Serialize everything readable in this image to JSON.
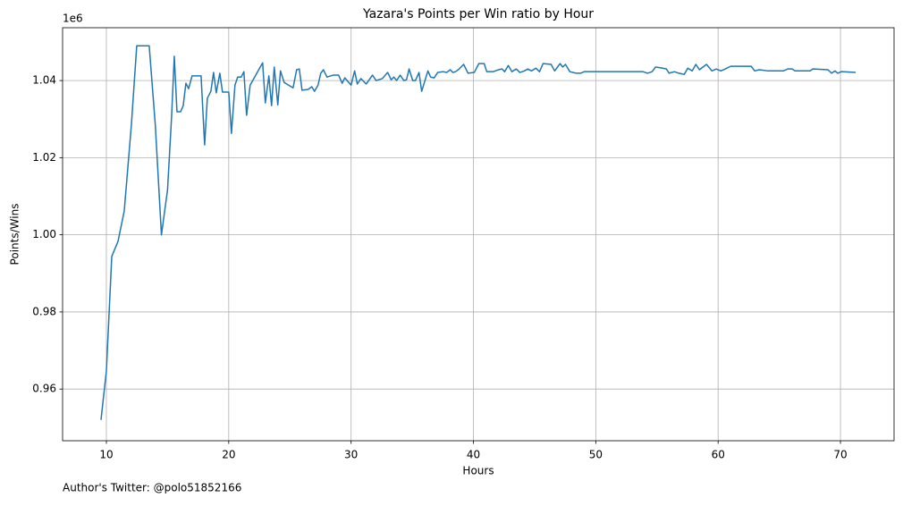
{
  "chart_data": {
    "type": "line",
    "title": "Yazara's Points per Win ratio by Hour",
    "xlabel": "Hours",
    "ylabel": "Points/Wins",
    "y_offset_label": "1e6",
    "footnote": "Author's Twitter: @polo51852166",
    "grid": true,
    "xlim": [
      6.42,
      74.38
    ],
    "ylim": [
      0.9466,
      1.0537
    ],
    "xticks": [
      10,
      20,
      30,
      40,
      50,
      60,
      70
    ],
    "yticks": [
      0.96,
      0.98,
      {
        "value": 1,
        "label": "1.00"
      },
      1.02,
      1.04
    ],
    "series": [
      {
        "color": "#1f77b4",
        "x": [
          9.56,
          10.0,
          10.44,
          10.95,
          11.46,
          12.04,
          12.48,
          13.5,
          14.0,
          14.5,
          15.0,
          15.33,
          15.55,
          15.77,
          16.06,
          16.28,
          16.5,
          16.72,
          17.0,
          17.74,
          18.03,
          18.25,
          18.54,
          18.76,
          18.98,
          19.27,
          19.49,
          20.0,
          20.22,
          20.51,
          20.73,
          21.02,
          21.24,
          21.46,
          21.75,
          22.77,
          22.99,
          23.28,
          23.5,
          23.72,
          24.01,
          24.23,
          24.53,
          25.26,
          25.55,
          25.77,
          25.99,
          26.5,
          26.79,
          27.01,
          27.3,
          27.52,
          27.74,
          28.03,
          28.54,
          28.98,
          29.27,
          29.49,
          30.0,
          30.29,
          30.51,
          30.8,
          31.24,
          31.75,
          32.04,
          32.55,
          32.99,
          33.28,
          33.5,
          33.72,
          34.01,
          34.31,
          34.53,
          34.74,
          35.04,
          35.26,
          35.55,
          35.77,
          36.28,
          36.5,
          36.79,
          37.08,
          37.52,
          37.81,
          38.1,
          38.32,
          38.54,
          38.83,
          39.2,
          39.56,
          40.07,
          40.44,
          40.88,
          41.09,
          41.61,
          42.04,
          42.34,
          42.55,
          42.85,
          43.14,
          43.5,
          43.8,
          44.16,
          44.45,
          44.74,
          45.11,
          45.4,
          45.69,
          46.35,
          46.64,
          47.08,
          47.3,
          47.52,
          47.88,
          48.39,
          48.76,
          49.05,
          53.87,
          54.23,
          54.6,
          54.89,
          55.47,
          55.77,
          55.99,
          56.42,
          56.79,
          57.23,
          57.52,
          57.88,
          58.18,
          58.47,
          59.05,
          59.49,
          59.85,
          60.22,
          60.58,
          61.02,
          62.7,
          62.99,
          63.36,
          64.09,
          65.33,
          65.69,
          66.06,
          66.28,
          67.52,
          67.74,
          68.98,
          69.27,
          69.56,
          69.78,
          70.07,
          71.24
        ],
        "values": [
          0.952,
          0.9647,
          0.9944,
          0.9983,
          1.0062,
          1.0284,
          1.049,
          1.049,
          1.0284,
          1.0,
          1.0117,
          1.0307,
          1.0463,
          1.0319,
          1.0319,
          1.0335,
          1.0393,
          1.0379,
          1.0412,
          1.0412,
          1.0233,
          1.0354,
          1.0372,
          1.0421,
          1.0368,
          1.0419,
          1.037,
          1.037,
          1.0263,
          1.0388,
          1.0409,
          1.0409,
          1.0423,
          1.031,
          1.0388,
          1.0446,
          1.0342,
          1.0412,
          1.0335,
          1.0435,
          1.0337,
          1.0425,
          1.0395,
          1.0381,
          1.0428,
          1.043,
          1.0375,
          1.0377,
          1.0384,
          1.0372,
          1.0388,
          1.0419,
          1.0428,
          1.0409,
          1.0414,
          1.0414,
          1.0393,
          1.0407,
          1.0388,
          1.0425,
          1.0391,
          1.0405,
          1.0391,
          1.0414,
          1.04,
          1.0405,
          1.0421,
          1.0402,
          1.0409,
          1.04,
          1.0414,
          1.04,
          1.0402,
          1.043,
          1.04,
          1.04,
          1.0421,
          1.0372,
          1.0425,
          1.0409,
          1.0407,
          1.0421,
          1.0423,
          1.0421,
          1.0428,
          1.0421,
          1.0423,
          1.043,
          1.0442,
          1.0419,
          1.0421,
          1.0444,
          1.0444,
          1.0423,
          1.0423,
          1.0428,
          1.043,
          1.0423,
          1.0439,
          1.0423,
          1.043,
          1.0421,
          1.0425,
          1.043,
          1.0425,
          1.0432,
          1.0423,
          1.0444,
          1.0442,
          1.0425,
          1.0444,
          1.0435,
          1.0442,
          1.0423,
          1.0419,
          1.0419,
          1.0423,
          1.0423,
          1.0419,
          1.0423,
          1.0435,
          1.0432,
          1.043,
          1.0419,
          1.0423,
          1.0419,
          1.0416,
          1.0432,
          1.0425,
          1.0442,
          1.0428,
          1.0442,
          1.0425,
          1.043,
          1.0425,
          1.043,
          1.0437,
          1.0437,
          1.0425,
          1.0428,
          1.0425,
          1.0425,
          1.043,
          1.043,
          1.0425,
          1.0425,
          1.043,
          1.0428,
          1.0419,
          1.0425,
          1.0419,
          1.0423,
          1.0421
        ]
      }
    ]
  }
}
